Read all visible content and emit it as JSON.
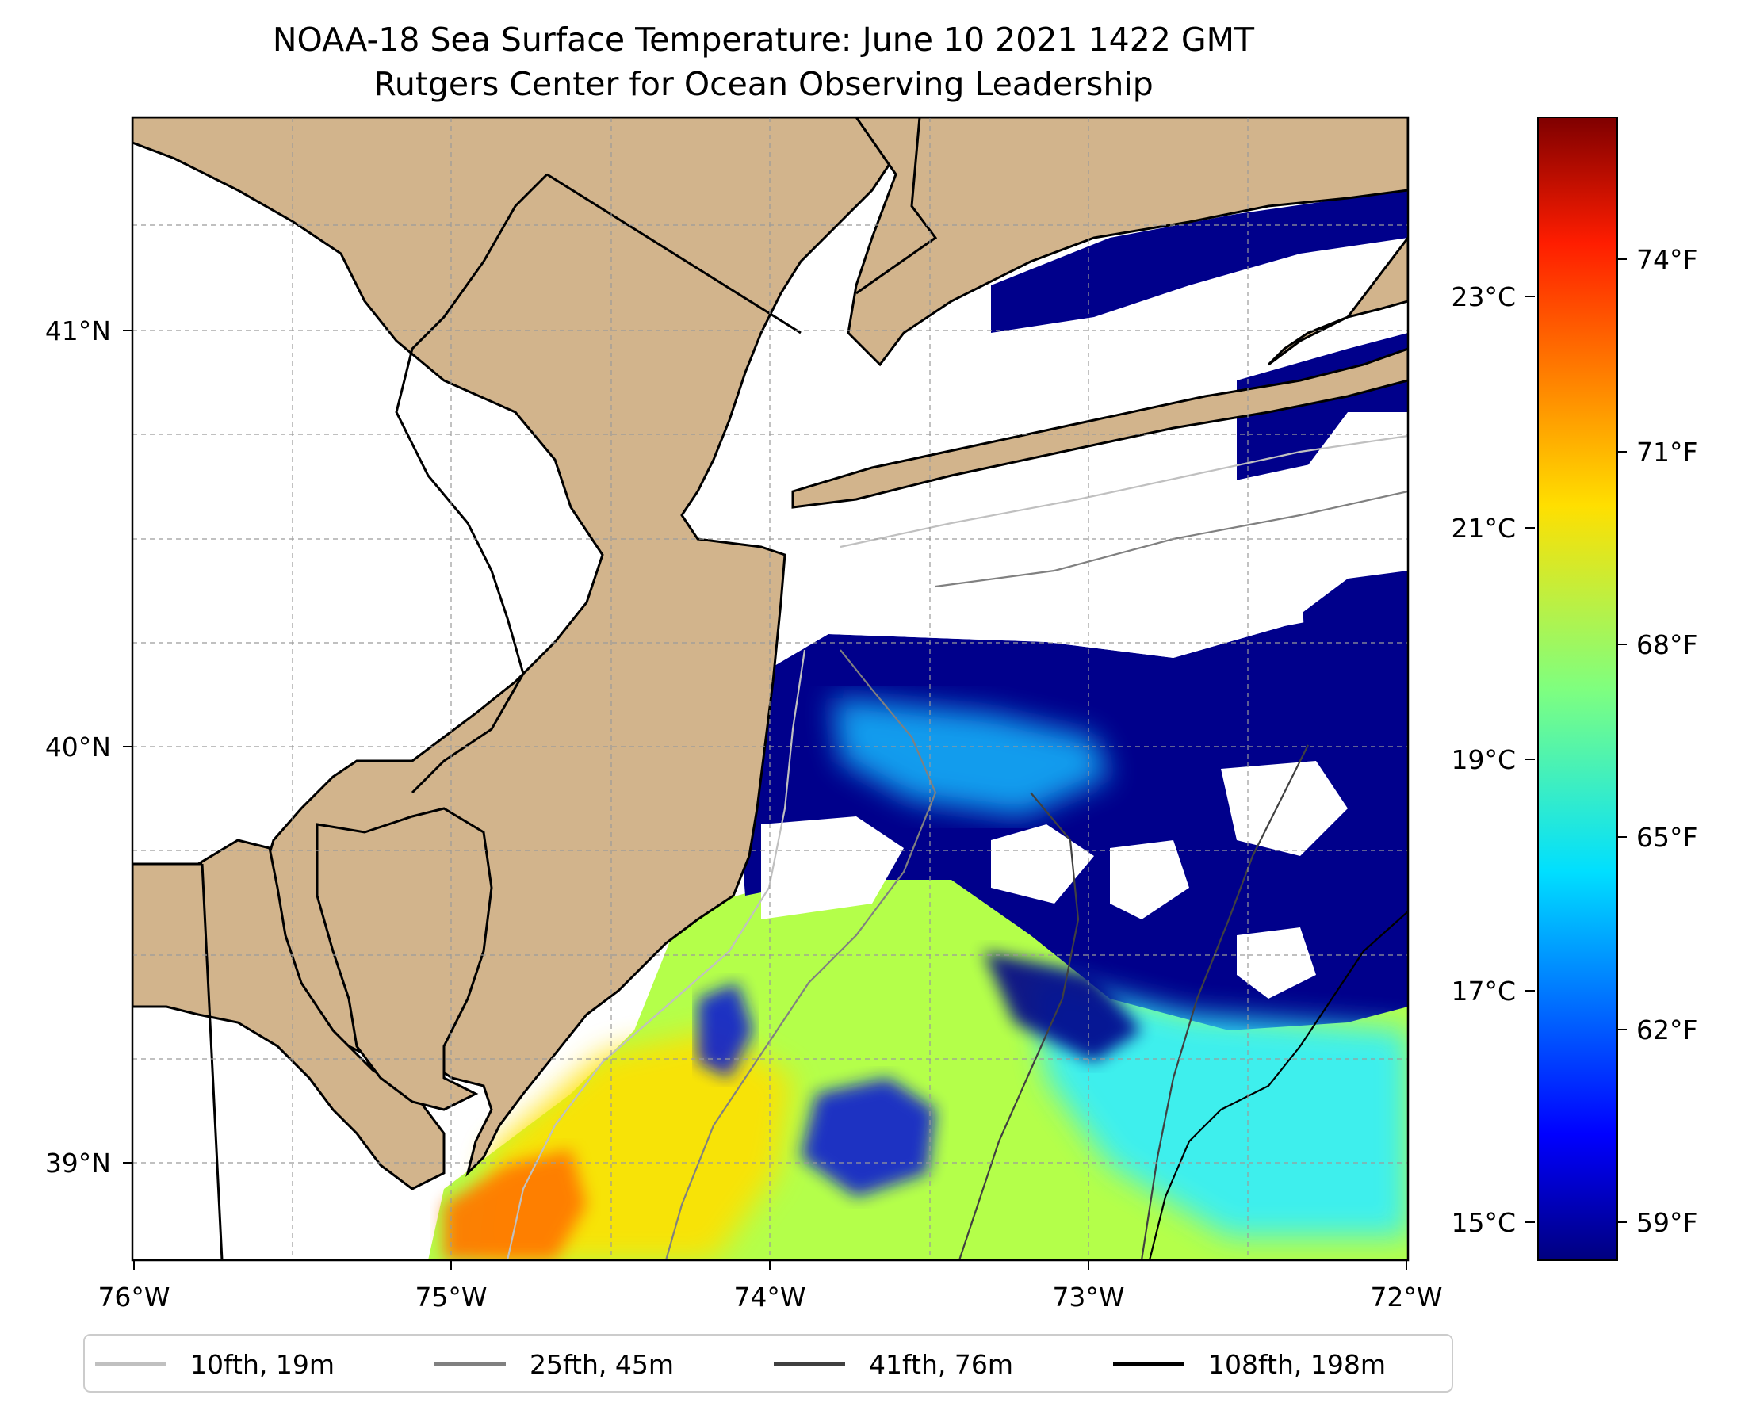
{
  "title": {
    "line1": "NOAA-18 Sea Surface Temperature: June 10 2021 1422 GMT",
    "line2": "Rutgers Center for Ocean Observing Leadership"
  },
  "map": {
    "lon_range": [
      -76,
      -72
    ],
    "lat_range": [
      38.7,
      41.5
    ],
    "lon_ticks": [
      "76°W",
      "75°W",
      "74°W",
      "73°W",
      "72°W"
    ],
    "lat_ticks": [
      "41°N",
      "40°N",
      "39°N"
    ],
    "land_color": "#d2b48c",
    "cloud_color": "#ffffff",
    "gridlines": "dashed"
  },
  "colorbar": {
    "colormap": "jet",
    "celsius_ticks": [
      "23°C",
      "21°C",
      "19°C",
      "17°C",
      "15°C"
    ],
    "fahrenheit_ticks": [
      "74°F",
      "71°F",
      "68°F",
      "65°F",
      "62°F",
      "59°F"
    ]
  },
  "legend": {
    "items": [
      {
        "label": "10fth, 19m",
        "color": "#c0c0c0"
      },
      {
        "label": "25fth, 45m",
        "color": "#808080"
      },
      {
        "label": "41fth, 76m",
        "color": "#404040"
      },
      {
        "label": "108fth, 198m",
        "color": "#000000"
      }
    ]
  }
}
